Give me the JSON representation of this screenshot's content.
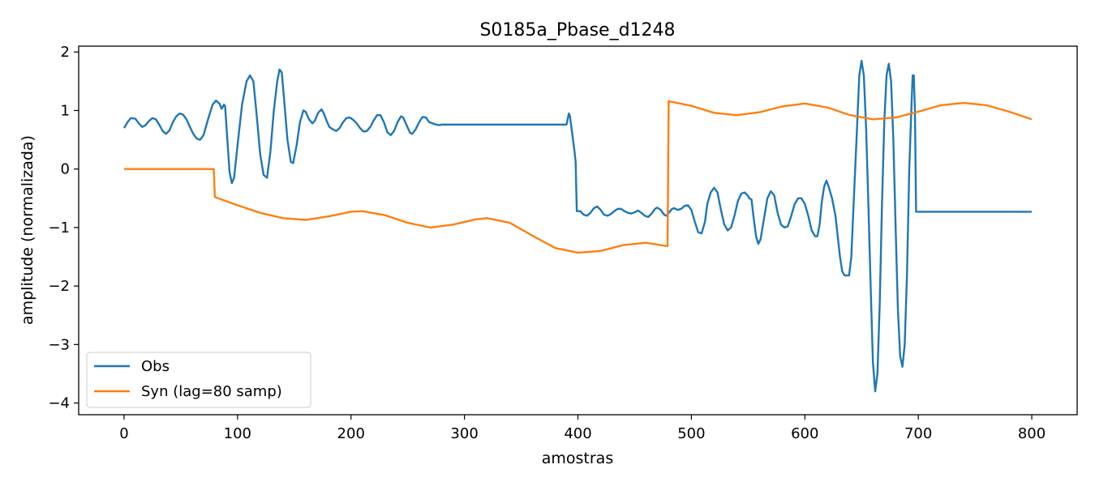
{
  "chart_data": {
    "type": "line",
    "title": "S0185a_Pbase_d1248",
    "xlabel": "amostras",
    "ylabel": "amplitude (normalizada)",
    "xlim": [
      -40,
      840
    ],
    "ylim": [
      -4.2,
      2.1
    ],
    "xticks": [
      0,
      100,
      200,
      300,
      400,
      500,
      600,
      700,
      800
    ],
    "yticks": [
      -4,
      -3,
      -2,
      -1,
      0,
      1,
      2
    ],
    "grid": false,
    "legend": "lower-left",
    "series": [
      {
        "name": "Obs",
        "color": "#1f77b4",
        "points": [
          [
            0,
            0.7
          ],
          [
            3,
            0.8
          ],
          [
            6,
            0.87
          ],
          [
            10,
            0.86
          ],
          [
            13,
            0.78
          ],
          [
            16,
            0.72
          ],
          [
            19,
            0.75
          ],
          [
            22,
            0.82
          ],
          [
            25,
            0.87
          ],
          [
            28,
            0.85
          ],
          [
            31,
            0.76
          ],
          [
            34,
            0.65
          ],
          [
            37,
            0.6
          ],
          [
            40,
            0.66
          ],
          [
            43,
            0.8
          ],
          [
            46,
            0.9
          ],
          [
            49,
            0.95
          ],
          [
            52,
            0.93
          ],
          [
            55,
            0.85
          ],
          [
            58,
            0.72
          ],
          [
            61,
            0.6
          ],
          [
            64,
            0.52
          ],
          [
            67,
            0.5
          ],
          [
            70,
            0.58
          ],
          [
            74,
            0.85
          ],
          [
            78,
            1.1
          ],
          [
            81,
            1.17
          ],
          [
            84,
            1.12
          ],
          [
            86,
            1.03
          ],
          [
            88,
            1.1
          ],
          [
            89,
            1.08
          ],
          [
            91,
            0.5
          ],
          [
            93,
            -0.05
          ],
          [
            95,
            -0.24
          ],
          [
            97,
            -0.15
          ],
          [
            100,
            0.4
          ],
          [
            104,
            1.1
          ],
          [
            108,
            1.5
          ],
          [
            111,
            1.6
          ],
          [
            114,
            1.5
          ],
          [
            117,
            0.9
          ],
          [
            120,
            0.25
          ],
          [
            123,
            -0.1
          ],
          [
            126,
            -0.15
          ],
          [
            129,
            0.3
          ],
          [
            132,
            1.0
          ],
          [
            135,
            1.5
          ],
          [
            137,
            1.7
          ],
          [
            139,
            1.65
          ],
          [
            141,
            1.2
          ],
          [
            144,
            0.5
          ],
          [
            147,
            0.12
          ],
          [
            149,
            0.1
          ],
          [
            152,
            0.4
          ],
          [
            155,
            0.8
          ],
          [
            158,
            1.0
          ],
          [
            160,
            0.98
          ],
          [
            163,
            0.85
          ],
          [
            166,
            0.78
          ],
          [
            168,
            0.82
          ],
          [
            171,
            0.96
          ],
          [
            174,
            1.02
          ],
          [
            176,
            0.95
          ],
          [
            179,
            0.8
          ],
          [
            181,
            0.72
          ],
          [
            184,
            0.68
          ],
          [
            187,
            0.65
          ],
          [
            190,
            0.7
          ],
          [
            193,
            0.8
          ],
          [
            196,
            0.87
          ],
          [
            199,
            0.88
          ],
          [
            202,
            0.84
          ],
          [
            205,
            0.78
          ],
          [
            208,
            0.7
          ],
          [
            211,
            0.64
          ],
          [
            214,
            0.65
          ],
          [
            217,
            0.72
          ],
          [
            220,
            0.83
          ],
          [
            223,
            0.92
          ],
          [
            226,
            0.92
          ],
          [
            229,
            0.8
          ],
          [
            232,
            0.63
          ],
          [
            235,
            0.58
          ],
          [
            238,
            0.65
          ],
          [
            241,
            0.8
          ],
          [
            244,
            0.9
          ],
          [
            246,
            0.88
          ],
          [
            249,
            0.75
          ],
          [
            252,
            0.62
          ],
          [
            254,
            0.6
          ],
          [
            257,
            0.68
          ],
          [
            260,
            0.8
          ],
          [
            263,
            0.89
          ],
          [
            266,
            0.88
          ],
          [
            269,
            0.8
          ],
          [
            272,
            0.78
          ],
          [
            275,
            0.76
          ],
          [
            278,
            0.75
          ],
          [
            280,
            0.76
          ],
          [
            283,
            0.76
          ],
          [
            286,
            0.76
          ],
          [
            287,
            0.76
          ],
          [
            390,
            0.76
          ],
          [
            392,
            0.95
          ],
          [
            393,
            0.9
          ],
          [
            395,
            0.6
          ],
          [
            397,
            0.3
          ],
          [
            398,
            0.12
          ],
          [
            399,
            -0.72
          ],
          [
            402,
            -0.72
          ],
          [
            405,
            -0.78
          ],
          [
            408,
            -0.8
          ],
          [
            411,
            -0.75
          ],
          [
            414,
            -0.67
          ],
          [
            417,
            -0.64
          ],
          [
            420,
            -0.7
          ],
          [
            423,
            -0.78
          ],
          [
            426,
            -0.8
          ],
          [
            429,
            -0.77
          ],
          [
            432,
            -0.72
          ],
          [
            435,
            -0.68
          ],
          [
            438,
            -0.68
          ],
          [
            441,
            -0.72
          ],
          [
            444,
            -0.75
          ],
          [
            447,
            -0.76
          ],
          [
            450,
            -0.74
          ],
          [
            453,
            -0.71
          ],
          [
            456,
            -0.75
          ],
          [
            459,
            -0.8
          ],
          [
            462,
            -0.82
          ],
          [
            465,
            -0.76
          ],
          [
            468,
            -0.68
          ],
          [
            470,
            -0.66
          ],
          [
            473,
            -0.7
          ],
          [
            476,
            -0.78
          ],
          [
            478,
            -0.8
          ],
          [
            480,
            -0.75
          ],
          [
            483,
            -0.68
          ],
          [
            485,
            -0.67
          ],
          [
            488,
            -0.7
          ],
          [
            491,
            -0.68
          ],
          [
            494,
            -0.63
          ],
          [
            497,
            -0.62
          ],
          [
            500,
            -0.7
          ],
          [
            503,
            -0.9
          ],
          [
            506,
            -1.08
          ],
          [
            509,
            -1.1
          ],
          [
            512,
            -0.9
          ],
          [
            514,
            -0.6
          ],
          [
            517,
            -0.4
          ],
          [
            520,
            -0.32
          ],
          [
            523,
            -0.4
          ],
          [
            526,
            -0.7
          ],
          [
            529,
            -0.95
          ],
          [
            532,
            -1.05
          ],
          [
            535,
            -1.0
          ],
          [
            538,
            -0.8
          ],
          [
            541,
            -0.55
          ],
          [
            544,
            -0.42
          ],
          [
            547,
            -0.4
          ],
          [
            550,
            -0.46
          ],
          [
            551,
            -0.5
          ],
          [
            553,
            -0.52
          ],
          [
            555,
            -0.85
          ],
          [
            557,
            -1.15
          ],
          [
            559,
            -1.28
          ],
          [
            561,
            -1.2
          ],
          [
            564,
            -0.85
          ],
          [
            567,
            -0.5
          ],
          [
            570,
            -0.38
          ],
          [
            573,
            -0.45
          ],
          [
            576,
            -0.75
          ],
          [
            579,
            -0.95
          ],
          [
            582,
            -1.0
          ],
          [
            585,
            -0.98
          ],
          [
            588,
            -0.8
          ],
          [
            591,
            -0.6
          ],
          [
            594,
            -0.5
          ],
          [
            597,
            -0.5
          ],
          [
            600,
            -0.6
          ],
          [
            603,
            -0.8
          ],
          [
            606,
            -1.05
          ],
          [
            609,
            -1.15
          ],
          [
            611,
            -1.15
          ],
          [
            613,
            -0.95
          ],
          [
            615,
            -0.55
          ],
          [
            617,
            -0.3
          ],
          [
            619,
            -0.2
          ],
          [
            621,
            -0.3
          ],
          [
            624,
            -0.5
          ],
          [
            627,
            -0.8
          ],
          [
            629,
            -1.15
          ],
          [
            631,
            -1.5
          ],
          [
            633,
            -1.75
          ],
          [
            635,
            -1.82
          ],
          [
            637,
            -1.82
          ],
          [
            639,
            -1.82
          ],
          [
            641,
            -1.5
          ],
          [
            643,
            -0.6
          ],
          [
            646,
            0.7
          ],
          [
            648,
            1.6
          ],
          [
            650,
            1.85
          ],
          [
            652,
            1.6
          ],
          [
            654,
            0.7
          ],
          [
            656,
            -0.6
          ],
          [
            658,
            -2.0
          ],
          [
            660,
            -3.3
          ],
          [
            662,
            -3.8
          ],
          [
            664,
            -3.5
          ],
          [
            666,
            -2.3
          ],
          [
            668,
            -0.6
          ],
          [
            670,
            0.8
          ],
          [
            672,
            1.6
          ],
          [
            674,
            1.8
          ],
          [
            676,
            1.5
          ],
          [
            678,
            0.5
          ],
          [
            680,
            -1.0
          ],
          [
            682,
            -2.4
          ],
          [
            684,
            -3.2
          ],
          [
            686,
            -3.38
          ],
          [
            688,
            -3.0
          ],
          [
            690,
            -1.8
          ],
          [
            692,
            0.0
          ],
          [
            694,
            1.1
          ],
          [
            695,
            1.6
          ],
          [
            696,
            1.6
          ],
          [
            697,
            1.0
          ],
          [
            698,
            -0.73
          ],
          [
            700,
            -0.73
          ],
          [
            720,
            -0.73
          ],
          [
            790,
            -0.73
          ],
          [
            800,
            -0.73
          ]
        ]
      },
      {
        "name": "Syn (lag=80 samp)",
        "color": "#ff7f0e",
        "points": [
          [
            0,
            0
          ],
          [
            79,
            0
          ],
          [
            80,
            -0.48
          ],
          [
            100,
            -0.62
          ],
          [
            120,
            -0.75
          ],
          [
            140,
            -0.84
          ],
          [
            160,
            -0.87
          ],
          [
            180,
            -0.81
          ],
          [
            200,
            -0.73
          ],
          [
            210,
            -0.72
          ],
          [
            230,
            -0.79
          ],
          [
            250,
            -0.92
          ],
          [
            270,
            -1.0
          ],
          [
            290,
            -0.95
          ],
          [
            310,
            -0.86
          ],
          [
            320,
            -0.84
          ],
          [
            340,
            -0.92
          ],
          [
            360,
            -1.14
          ],
          [
            380,
            -1.35
          ],
          [
            400,
            -1.43
          ],
          [
            420,
            -1.4
          ],
          [
            440,
            -1.3
          ],
          [
            460,
            -1.26
          ],
          [
            479,
            -1.32
          ],
          [
            480,
            1.16
          ],
          [
            500,
            1.08
          ],
          [
            520,
            0.96
          ],
          [
            540,
            0.92
          ],
          [
            560,
            0.97
          ],
          [
            580,
            1.07
          ],
          [
            600,
            1.12
          ],
          [
            620,
            1.05
          ],
          [
            640,
            0.92
          ],
          [
            660,
            0.85
          ],
          [
            680,
            0.88
          ],
          [
            700,
            0.98
          ],
          [
            720,
            1.09
          ],
          [
            740,
            1.13
          ],
          [
            760,
            1.09
          ],
          [
            780,
            0.98
          ],
          [
            800,
            0.85
          ]
        ]
      }
    ]
  }
}
